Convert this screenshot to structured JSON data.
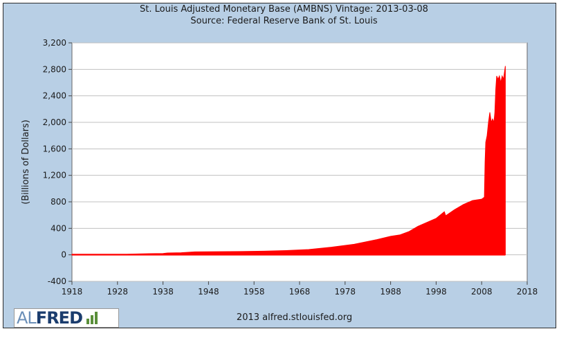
{
  "chart_data": {
    "type": "area",
    "title": "St. Louis Adjusted Monetary Base (AMBNS) Vintage: 2013-03-08",
    "subtitle": "Source: Federal Reserve Bank of St. Louis",
    "xlabel": "",
    "ylabel": "(Billions of Dollars)",
    "xlim": [
      1918,
      2018
    ],
    "ylim": [
      -400,
      3200
    ],
    "xticks": [
      "1918",
      "1928",
      "1938",
      "1948",
      "1958",
      "1968",
      "1978",
      "1988",
      "1998",
      "2008",
      "2018"
    ],
    "yticks": [
      "-400",
      "0",
      "400",
      "800",
      "1,200",
      "1,600",
      "2,000",
      "2,400",
      "2,800",
      "3,200"
    ],
    "grid": true,
    "color": "#ff0000",
    "series": [
      {
        "x": [
          1918,
          1920,
          1925,
          1930,
          1935,
          1938,
          1939,
          1942,
          1945,
          1950,
          1955,
          1960,
          1965,
          1970,
          1975,
          1980,
          1985,
          1988,
          1990,
          1992,
          1994,
          1996,
          1998,
          1999.8,
          2000.1,
          2002,
          2004,
          2006,
          2008.0,
          2008.6,
          2008.75,
          2008.9,
          2009.2,
          2009.5,
          2009.8,
          2010.1,
          2010.4,
          2010.7,
          2010.9,
          2011.1,
          2011.3,
          2011.6,
          2011.9,
          2012.2,
          2012.5,
          2012.8,
          2013.0,
          2013.2
        ],
        "y": [
          10,
          10,
          10,
          10,
          18,
          20,
          28,
          32,
          45,
          47,
          50,
          55,
          65,
          80,
          115,
          160,
          230,
          280,
          300,
          350,
          430,
          490,
          550,
          650,
          590,
          680,
          760,
          820,
          840,
          870,
          1400,
          1700,
          1800,
          2000,
          2150,
          2000,
          2050,
          2000,
          2150,
          2500,
          2700,
          2650,
          2700,
          2600,
          2700,
          2650,
          2750,
          2850
        ]
      }
    ]
  },
  "footer": {
    "logo_al": "AL",
    "logo_fred": "FRED",
    "credit": "2013 alfred.stlouisfed.org"
  }
}
